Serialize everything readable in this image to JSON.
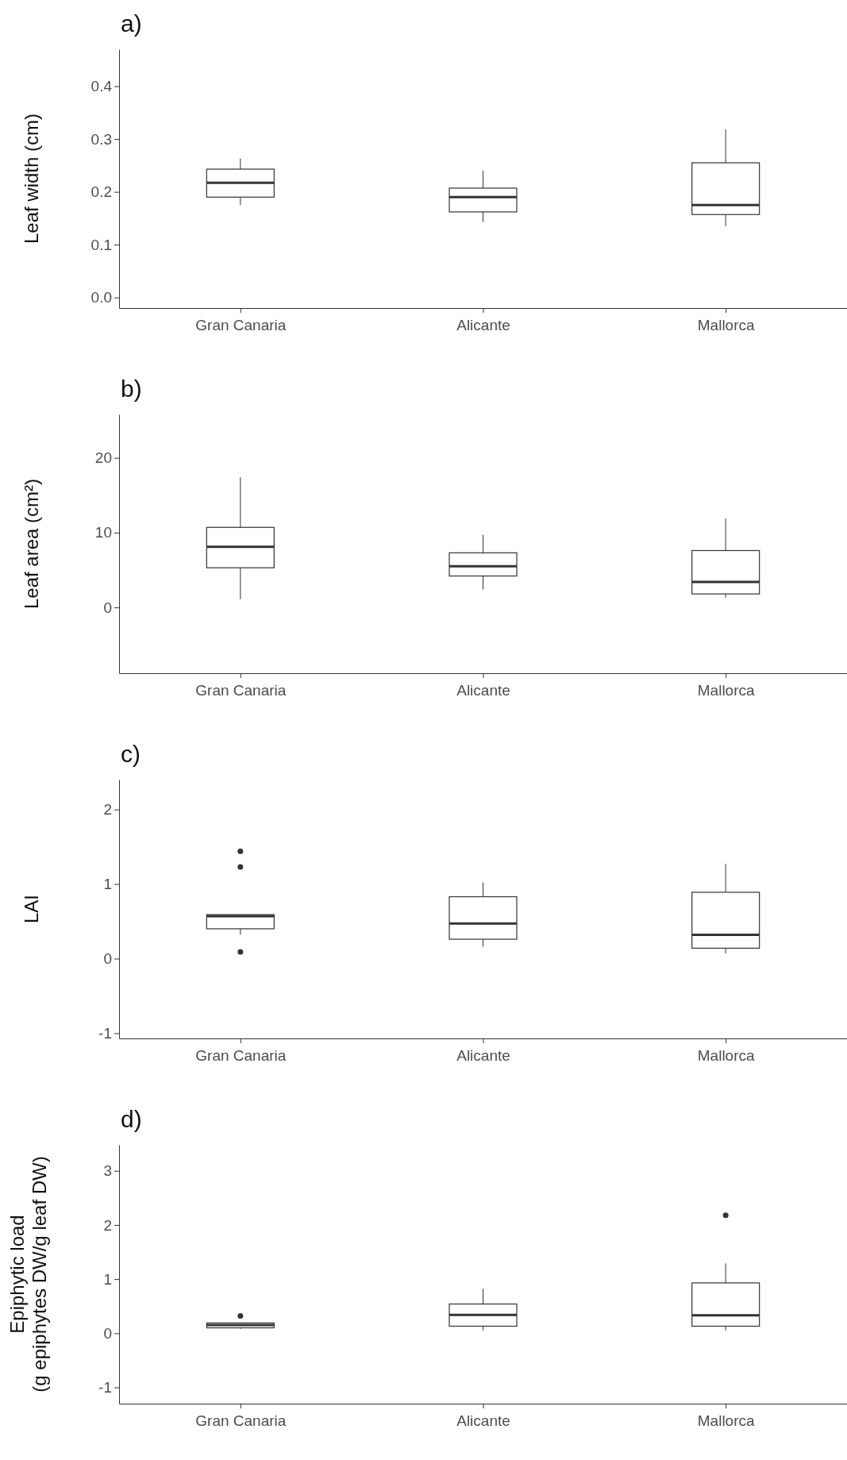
{
  "chart_data": [
    {
      "type": "box",
      "title": "a)",
      "ylabel": "Leaf width (cm)",
      "categories": [
        "Gran Canaria",
        "Alicante",
        "Mallorca"
      ],
      "ylim": [
        -0.02,
        0.47
      ],
      "yticks": [
        {
          "value": 0,
          "label": "0.0"
        },
        0.1,
        0.2,
        0.3,
        0.4
      ],
      "grid": false,
      "boxes": [
        {
          "low": 0.175,
          "q1": 0.19,
          "median": 0.217,
          "q3": 0.243,
          "high": 0.263
        },
        {
          "low": 0.143,
          "q1": 0.162,
          "median": 0.19,
          "q3": 0.207,
          "high": 0.24
        },
        {
          "low": 0.135,
          "q1": 0.157,
          "median": 0.175,
          "q3": 0.255,
          "high": 0.318
        }
      ]
    },
    {
      "type": "box",
      "title": "b)",
      "ylabel": "Leaf area (cm²)",
      "categories": [
        "Gran Canaria",
        "Alicante",
        "Mallorca"
      ],
      "ylim": [
        -8.8,
        25.8
      ],
      "yticks": [
        0,
        10,
        20
      ],
      "grid": false,
      "boxes": [
        {
          "low": 1.1,
          "q1": 5.3,
          "median": 8.1,
          "q3": 10.7,
          "high": 17.4
        },
        {
          "low": 2.4,
          "q1": 4.2,
          "median": 5.5,
          "q3": 7.3,
          "high": 9.7
        },
        {
          "low": 1.3,
          "q1": 1.8,
          "median": 3.4,
          "q3": 7.6,
          "high": 11.9
        }
      ]
    },
    {
      "type": "box",
      "title": "c)",
      "ylabel": "LAI",
      "categories": [
        "Gran Canaria",
        "Alicante",
        "Mallorca"
      ],
      "ylim": [
        -1.07,
        2.4
      ],
      "yticks": [
        -1,
        0,
        1,
        2
      ],
      "grid": false,
      "boxes": [
        {
          "low": 0.32,
          "q1": 0.4,
          "median": 0.57,
          "q3": 0.59,
          "high": 0.59,
          "outliers": [
            1.44,
            1.23,
            0.09
          ]
        },
        {
          "low": 0.16,
          "q1": 0.26,
          "median": 0.47,
          "q3": 0.83,
          "high": 1.02
        },
        {
          "low": 0.07,
          "q1": 0.14,
          "median": 0.32,
          "q3": 0.89,
          "high": 1.27
        }
      ]
    },
    {
      "type": "box",
      "title": "d)",
      "ylabel": "Epiphytic load\n(g epiphytes DW/g leaf DW)",
      "categories": [
        "Gran Canaria",
        "Alicante",
        "Mallorca"
      ],
      "ylim": [
        -1.3,
        3.48
      ],
      "yticks": [
        -1,
        0,
        1,
        2,
        3
      ],
      "grid": false,
      "boxes": [
        {
          "low": 0.08,
          "q1": 0.1,
          "median": 0.15,
          "q3": 0.19,
          "high": 0.2,
          "outliers": [
            0.32
          ]
        },
        {
          "low": 0.05,
          "q1": 0.13,
          "median": 0.34,
          "q3": 0.54,
          "high": 0.82
        },
        {
          "low": 0.05,
          "q1": 0.13,
          "median": 0.33,
          "q3": 0.93,
          "high": 1.29,
          "outliers": [
            2.18
          ]
        }
      ]
    }
  ]
}
